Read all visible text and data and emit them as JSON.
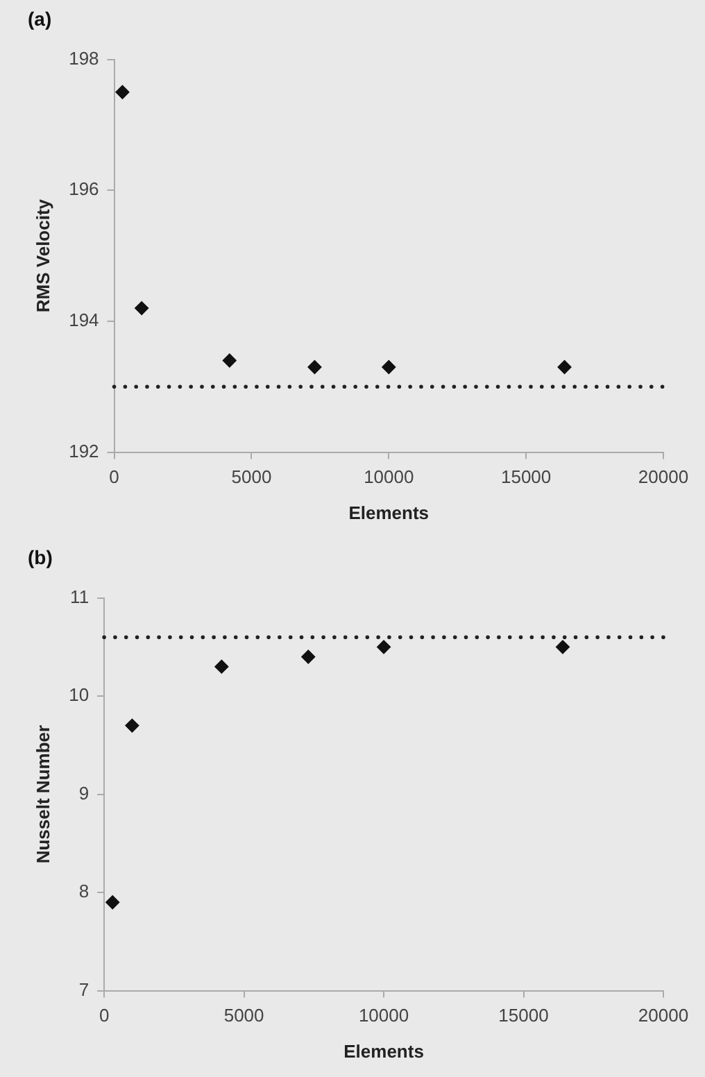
{
  "chart_data": [
    {
      "type": "scatter",
      "title": "(a)",
      "xlabel": "Elements",
      "ylabel": "RMS Velocity",
      "x": [
        300,
        1000,
        4200,
        7300,
        10000,
        16400
      ],
      "series": [
        {
          "color": "#111111",
          "values": [
            197.5,
            194.2,
            193.4,
            193.3,
            193.3,
            193.3
          ]
        }
      ],
      "xlim": [
        0,
        20000
      ],
      "xticks": [
        0,
        5000,
        10000,
        15000,
        20000
      ],
      "ylim": [
        192,
        198
      ],
      "yticks": [
        192,
        194,
        196,
        198
      ],
      "ref_lines": [
        {
          "axis": "y",
          "value": 193.0,
          "color": "#222222",
          "line_style": "dotted"
        }
      ],
      "marker": "diamond",
      "grid": false,
      "legend": false
    },
    {
      "type": "scatter",
      "title": "(b)",
      "xlabel": "Elements",
      "ylabel": "Nusselt Number",
      "x": [
        300,
        1000,
        4200,
        7300,
        10000,
        16400
      ],
      "series": [
        {
          "color": "#111111",
          "values": [
            7.9,
            9.7,
            10.3,
            10.4,
            10.5,
            10.5
          ]
        }
      ],
      "xlim": [
        0,
        20000
      ],
      "xticks": [
        0,
        5000,
        10000,
        15000,
        20000
      ],
      "ylim": [
        7,
        11
      ],
      "yticks": [
        7,
        8,
        9,
        10,
        11
      ],
      "ref_lines": [
        {
          "axis": "y",
          "value": 10.6,
          "color": "#222222",
          "line_style": "dotted"
        }
      ],
      "marker": "diamond",
      "grid": false,
      "legend": false
    }
  ]
}
